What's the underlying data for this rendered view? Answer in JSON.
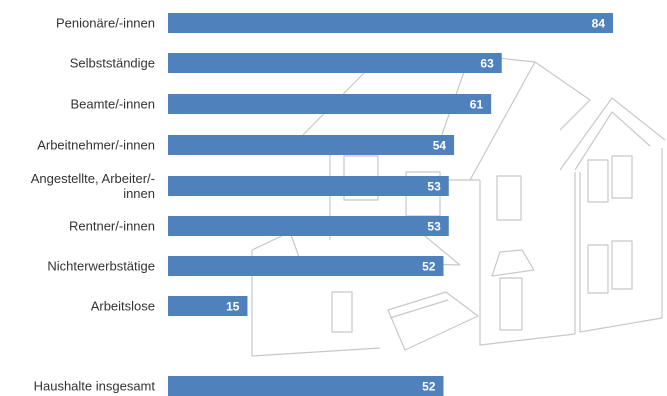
{
  "colors": {
    "bar": "#4f81bd",
    "label": "#333333",
    "value": "#ffffff",
    "house_line": "#c8c8c8"
  },
  "decor": {
    "background": "house-outline-icon"
  },
  "chart_data": {
    "type": "bar",
    "orientation": "horizontal",
    "title": "",
    "xlabel": "",
    "ylabel": "",
    "xlim": [
      0,
      100
    ],
    "grid": false,
    "legend": "none",
    "categories": [
      "Penionäre/-innen",
      "Selbstständige",
      "Beamte/-innen",
      "Arbeitnehmer/-innen",
      [
        "Angestellte, Arbeiter/-",
        "innen"
      ],
      "Rentner/-innen",
      "Nichterwerbstätige",
      "Arbeitslose",
      "Haushalte insgesamt"
    ],
    "values": [
      84,
      63,
      61,
      54,
      53,
      53,
      52,
      15,
      52
    ]
  }
}
